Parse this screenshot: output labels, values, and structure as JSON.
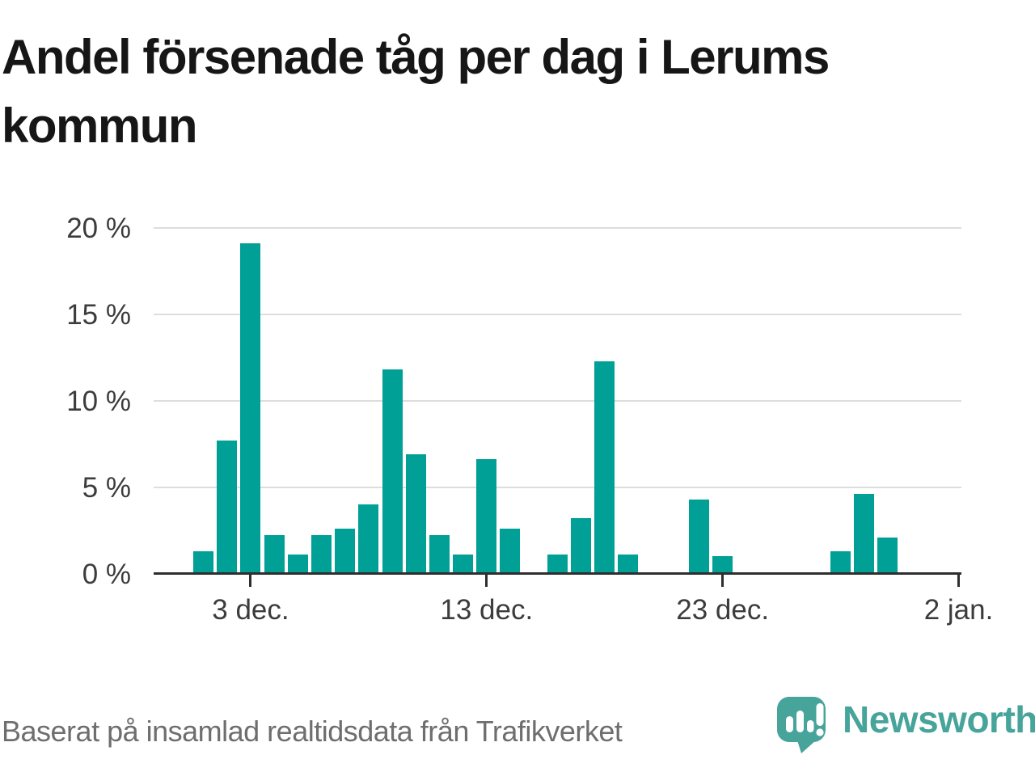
{
  "title": {
    "line1": "Andel försenade tåg per dag i Lerums",
    "line2": "kommun"
  },
  "footer": {
    "source_text": "Baserat på insamlad realtidsdata från Trafikverket",
    "brand": "Newsworthy"
  },
  "colors": {
    "bar": "#00a096",
    "grid": "#dddddd",
    "axis": "#2e2e2e",
    "tick_label": "#3c3c3c",
    "title_text": "#161616",
    "footer_text": "#6e6e6e",
    "logo_teal": "#47a49a"
  },
  "chart_data": {
    "type": "bar",
    "title": "Andel försenade tåg per dag i Lerums kommun",
    "xlabel": "",
    "ylabel": "",
    "unit": "%",
    "ylim": [
      0,
      20
    ],
    "grid": "horizontal",
    "legend": "none",
    "yticks": [
      {
        "value": 0,
        "label": "0 %"
      },
      {
        "value": 5,
        "label": "5 %"
      },
      {
        "value": 10,
        "label": "10 %"
      },
      {
        "value": 15,
        "label": "15 %"
      },
      {
        "value": 20,
        "label": "20 %"
      }
    ],
    "xticks": [
      {
        "day_index": 4,
        "label": "3 dec."
      },
      {
        "day_index": 14,
        "label": "13 dec."
      },
      {
        "day_index": 24,
        "label": "23 dec."
      },
      {
        "day_index": 34,
        "label": "2 jan."
      }
    ],
    "days": [
      {
        "date": "29 nov.",
        "value": null
      },
      {
        "date": "30 nov.",
        "value": null
      },
      {
        "date": "1 dec.",
        "value": 1.3
      },
      {
        "date": "2 dec.",
        "value": 7.7
      },
      {
        "date": "3 dec.",
        "value": 19.1
      },
      {
        "date": "4 dec.",
        "value": 2.2
      },
      {
        "date": "5 dec.",
        "value": 1.1
      },
      {
        "date": "6 dec.",
        "value": 2.2
      },
      {
        "date": "7 dec.",
        "value": 2.6
      },
      {
        "date": "8 dec.",
        "value": 4.0
      },
      {
        "date": "9 dec.",
        "value": 11.8
      },
      {
        "date": "10 dec.",
        "value": 6.9
      },
      {
        "date": "11 dec.",
        "value": 2.2
      },
      {
        "date": "12 dec.",
        "value": 1.1
      },
      {
        "date": "13 dec.",
        "value": 6.6
      },
      {
        "date": "14 dec.",
        "value": 2.6
      },
      {
        "date": "15 dec.",
        "value": null
      },
      {
        "date": "16 dec.",
        "value": 1.1
      },
      {
        "date": "17 dec.",
        "value": 3.2
      },
      {
        "date": "18 dec.",
        "value": 12.3
      },
      {
        "date": "19 dec.",
        "value": 1.1
      },
      {
        "date": "20 dec.",
        "value": null
      },
      {
        "date": "21 dec.",
        "value": null
      },
      {
        "date": "22 dec.",
        "value": 4.3
      },
      {
        "date": "23 dec.",
        "value": 1.0
      },
      {
        "date": "24 dec.",
        "value": null
      },
      {
        "date": "25 dec.",
        "value": null
      },
      {
        "date": "26 dec.",
        "value": null
      },
      {
        "date": "27 dec.",
        "value": null
      },
      {
        "date": "28 dec.",
        "value": 1.3
      },
      {
        "date": "29 dec.",
        "value": 4.6
      },
      {
        "date": "30 dec.",
        "value": 2.1
      },
      {
        "date": "31 dec.",
        "value": null
      },
      {
        "date": "1 jan.",
        "value": null
      },
      {
        "date": "2 jan.",
        "value": null
      }
    ]
  }
}
